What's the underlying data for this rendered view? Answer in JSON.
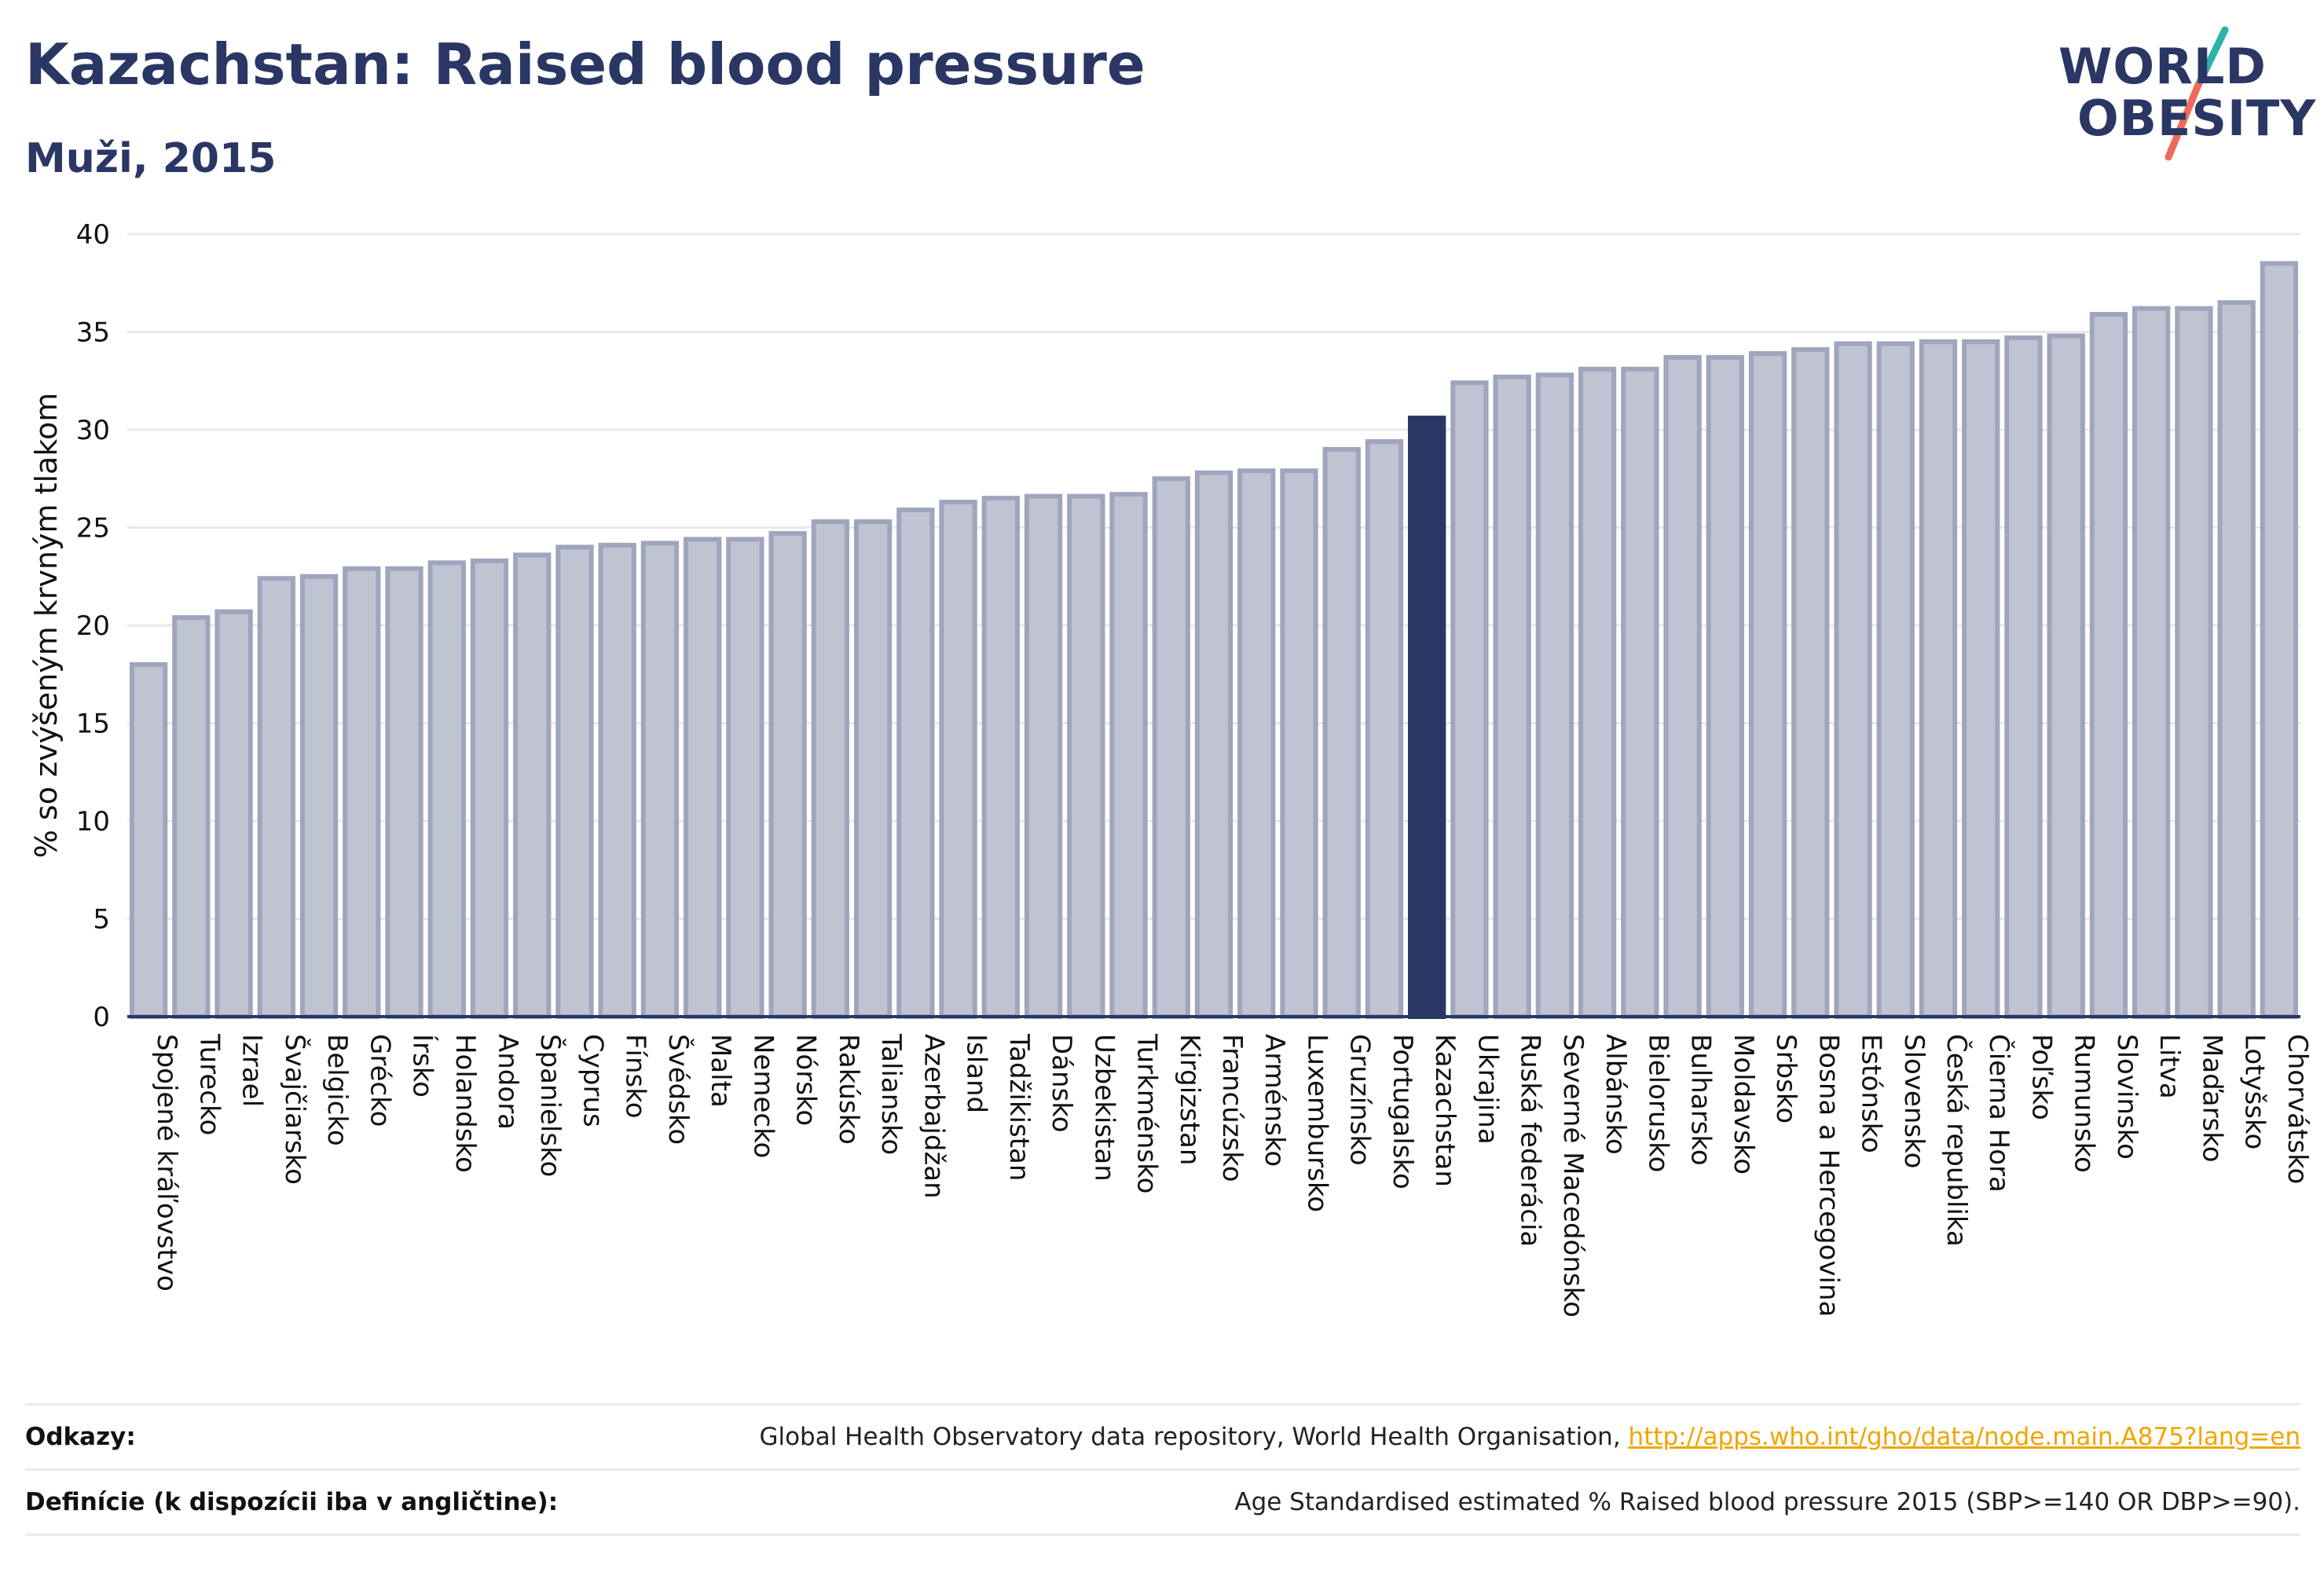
{
  "header": {
    "title": "Kazachstan: Raised blood pressure",
    "subtitle": "Muži, 2015"
  },
  "logo": {
    "line1": "WORLD",
    "line2": "OBESITY"
  },
  "chart_data": {
    "type": "bar",
    "ylabel": "% so zvýšeným krvným tlakom",
    "ylim": [
      0,
      40
    ],
    "yticks": [
      0,
      5,
      10,
      15,
      20,
      25,
      30,
      35,
      40
    ],
    "grid": true,
    "highlight": "Kazachstan",
    "colors": {
      "bar": "#bfc3d2",
      "bar_edge": "#9fa5bd",
      "highlight": "#2a3663"
    },
    "categories": [
      "Spojené kráľovstvo",
      "Turecko",
      "Izrael",
      "Švajčiarsko",
      "Belgicko",
      "Grécko",
      "Írsko",
      "Holandsko",
      "Andora",
      "Španielsko",
      "Cyprus",
      "Fínsko",
      "Švédsko",
      "Malta",
      "Nemecko",
      "Nórsko",
      "Rakúsko",
      "Taliansko",
      "Azerbajdžan",
      "Island",
      "Tadžikistan",
      "Dánsko",
      "Uzbekistan",
      "Turkménsko",
      "Kirgizstan",
      "Francúzsko",
      "Arménsko",
      "Luxembursko",
      "Gruzínsko",
      "Portugalsko",
      "Kazachstan",
      "Ukrajina",
      "Ruská federácia",
      "Severné Macedónsko",
      "Albánsko",
      "Bielorusko",
      "Bulharsko",
      "Moldavsko",
      "Srbsko",
      "Bosna a Hercegovina",
      "Estónsko",
      "Slovensko",
      "Česká republika",
      "Čierna Hora",
      "Poľsko",
      "Rumunsko",
      "Slovinsko",
      "Litva",
      "Maďarsko",
      "Lotyšsko",
      "Chorvátsko"
    ],
    "values": [
      18.0,
      20.4,
      20.7,
      22.4,
      22.5,
      22.9,
      22.9,
      23.2,
      23.3,
      23.6,
      24.0,
      24.1,
      24.2,
      24.4,
      24.4,
      24.7,
      25.3,
      25.3,
      25.9,
      26.3,
      26.5,
      26.6,
      26.6,
      26.7,
      27.5,
      27.8,
      27.9,
      27.9,
      29.0,
      29.4,
      30.6,
      32.4,
      32.7,
      32.8,
      33.1,
      33.1,
      33.7,
      33.7,
      33.9,
      34.1,
      34.4,
      34.4,
      34.5,
      34.5,
      34.7,
      34.8,
      35.9,
      36.2,
      36.2,
      36.5,
      38.5
    ]
  },
  "footer": {
    "sources_label": "Odkazy:",
    "sources_text": "Global Health Observatory data repository, World Health Organisation, ",
    "sources_link": "http://apps.who.int/gho/data/node.main.A875?lang=en",
    "definitions_label": "Definície (k dispozícii iba v angličtine):",
    "definitions_text": "Age Standardised estimated % Raised blood pressure 2015 (SBP>=140 OR DBP>=90)."
  }
}
